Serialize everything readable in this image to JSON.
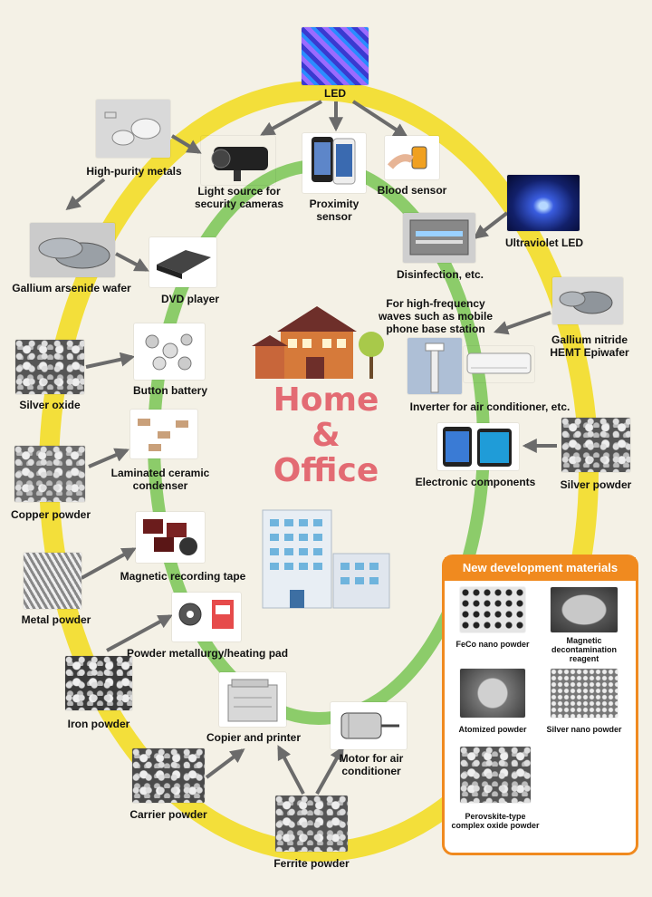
{
  "center": {
    "line1": "Home",
    "line2": "&",
    "line3": "Office"
  },
  "labels": {
    "led": "LED",
    "high_purity_metals": "High-purity metals",
    "light_source": "Light source for security cameras",
    "proximity_sensor": "Proximity sensor",
    "blood_sensor": "Blood sensor",
    "ultraviolet_led": "Ultraviolet LED",
    "disinfection": "Disinfection, etc.",
    "gallium_arsenide_wafer": "Gallium arsenide wafer",
    "dvd_player": "DVD player",
    "high_frequency": "For high-frequency waves such as mobile phone base station",
    "gallium_nitride": "Gallium nitride HEMT Epiwafer",
    "silver_oxide": "Silver oxide",
    "button_battery": "Button battery",
    "inverter": "Inverter for air conditioner, etc.",
    "copper_powder": "Copper powder",
    "laminated_ceramic": "Laminated ceramic condenser",
    "electronic_components": "Electronic components",
    "silver_powder": "Silver powder",
    "metal_powder": "Metal powder",
    "magnetic_tape": "Magnetic recording tape",
    "powder_metallurgy": "Powder metallurgy/heating pad",
    "iron_powder": "Iron powder",
    "copier_printer": "Copier and printer",
    "motor": "Motor for air conditioner",
    "carrier_powder": "Carrier powder",
    "ferrite_powder": "Ferrite powder"
  },
  "panel": {
    "title": "New development materials",
    "items": [
      "FeCo nano powder",
      "Magnetic decontamination reagent",
      "Atomized powder",
      "Silver nano powder",
      "Perovskite-type complex oxide powder"
    ]
  },
  "colors": {
    "background": "#f4f1e6",
    "outer_ring": "#f3df3a",
    "inner_ring": "#8ccc6a",
    "title": "#e36b73",
    "panel_accent": "#f08a1f",
    "arrow": "#6b6b6b"
  }
}
